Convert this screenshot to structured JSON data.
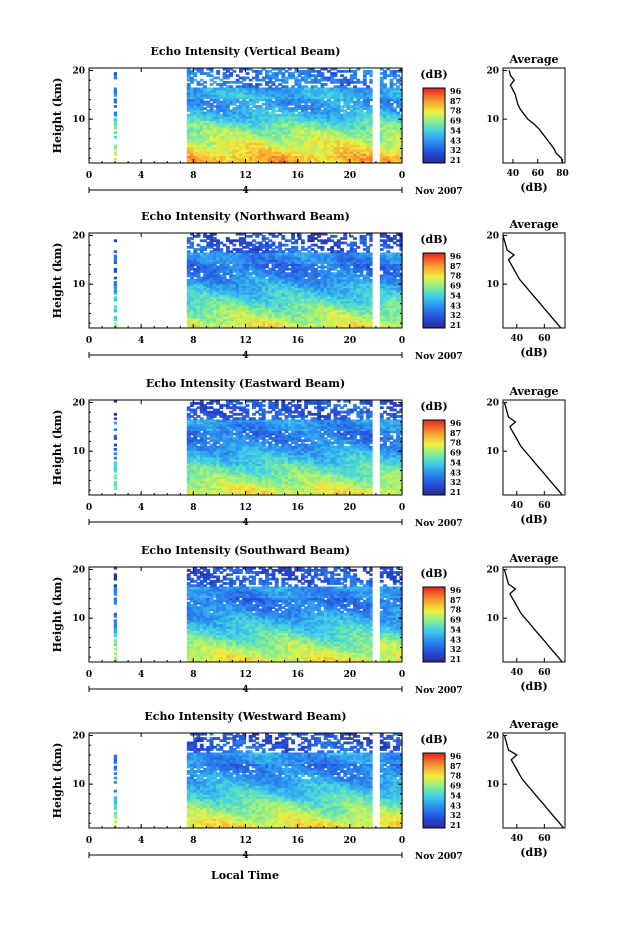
{
  "shared": {
    "xlabel": "Local Time",
    "x_ticks": [
      "0",
      "4",
      "8",
      "12",
      "16",
      "20",
      "0"
    ],
    "date_label": "Nov 2007",
    "day_marker": "4",
    "ylabel": "Height (km)",
    "y_ticks": [
      "20",
      "10"
    ],
    "colorbar_unit": "(dB)",
    "colorbar_ticks": [
      "96",
      "87",
      "78",
      "69",
      "54",
      "43",
      "32",
      "21"
    ],
    "profile_title": "Average",
    "profile_xlabel": "(dB)",
    "colors": {
      "axis": "#000000",
      "profile_line": "#000000"
    }
  },
  "chart_data": [
    {
      "type": "heatmap",
      "title": "Echo Intensity (Vertical Beam)",
      "x_range_hours": [
        0,
        24
      ],
      "y_range_km": [
        1,
        20.5
      ],
      "data_coverage_hours": [
        [
          1.9,
          2.1
        ],
        [
          7.5,
          21.7
        ],
        [
          22.3,
          24
        ]
      ],
      "color_range_db": [
        21,
        96
      ],
      "profile": {
        "title": "Average",
        "xlabel": "(dB)",
        "x_ticks": [
          "40",
          "60",
          "80"
        ],
        "xlim": [
          32,
          82
        ],
        "height_km": [
          1,
          2,
          3,
          4,
          5,
          6,
          7,
          8,
          9,
          10,
          11,
          12,
          13,
          14,
          15,
          16,
          17,
          18,
          19,
          20
        ],
        "db": [
          80,
          79,
          75,
          73,
          70,
          67,
          64,
          61,
          57,
          52,
          49,
          46,
          44,
          43,
          42,
          40,
          38,
          41,
          38,
          37
        ]
      }
    },
    {
      "type": "heatmap",
      "title": "Echo Intensity (Northward Beam)",
      "x_range_hours": [
        0,
        24
      ],
      "y_range_km": [
        1,
        20.5
      ],
      "data_coverage_hours": [
        [
          1.9,
          2.1
        ],
        [
          7.5,
          21.7
        ],
        [
          22.3,
          24
        ]
      ],
      "color_range_db": [
        21,
        96
      ],
      "profile": {
        "title": "Average",
        "xlabel": "(dB)",
        "x_ticks": [
          "40",
          "60"
        ],
        "xlim": [
          30,
          75
        ],
        "height_km": [
          1,
          2,
          3,
          4,
          5,
          6,
          7,
          8,
          9,
          10,
          11,
          12,
          13,
          14,
          15,
          16,
          17,
          18,
          19,
          20
        ],
        "db": [
          72,
          69,
          66,
          63,
          60,
          57,
          54,
          51,
          48,
          45,
          42,
          40,
          38,
          36,
          34,
          38,
          33,
          32,
          31,
          30
        ]
      }
    },
    {
      "type": "heatmap",
      "title": "Echo Intensity (Eastward Beam)",
      "x_range_hours": [
        0,
        24
      ],
      "y_range_km": [
        1,
        20.5
      ],
      "data_coverage_hours": [
        [
          1.9,
          2.1
        ],
        [
          7.5,
          21.7
        ],
        [
          22.3,
          24
        ]
      ],
      "color_range_db": [
        21,
        96
      ],
      "profile": {
        "title": "Average",
        "xlabel": "(dB)",
        "x_ticks": [
          "40",
          "60"
        ],
        "xlim": [
          30,
          75
        ],
        "height_km": [
          1,
          2,
          3,
          4,
          5,
          6,
          7,
          8,
          9,
          10,
          11,
          12,
          13,
          14,
          15,
          16,
          17,
          18,
          19,
          20
        ],
        "db": [
          73,
          70,
          67,
          64,
          61,
          58,
          55,
          52,
          49,
          46,
          43,
          41,
          39,
          37,
          35,
          39,
          34,
          33,
          32,
          31
        ]
      }
    },
    {
      "type": "heatmap",
      "title": "Echo Intensity (Southward Beam)",
      "x_range_hours": [
        0,
        24
      ],
      "y_range_km": [
        1,
        20.5
      ],
      "data_coverage_hours": [
        [
          1.9,
          2.1
        ],
        [
          7.5,
          21.7
        ],
        [
          22.3,
          24
        ]
      ],
      "color_range_db": [
        21,
        96
      ],
      "profile": {
        "title": "Average",
        "xlabel": "(dB)",
        "x_ticks": [
          "40",
          "60"
        ],
        "xlim": [
          30,
          75
        ],
        "height_km": [
          1,
          2,
          3,
          4,
          5,
          6,
          7,
          8,
          9,
          10,
          11,
          12,
          13,
          14,
          15,
          16,
          17,
          18,
          19,
          20
        ],
        "db": [
          73,
          70,
          67,
          64,
          61,
          58,
          55,
          52,
          49,
          46,
          43,
          41,
          39,
          37,
          35,
          39,
          34,
          33,
          32,
          31
        ]
      }
    },
    {
      "type": "heatmap",
      "title": "Echo Intensity (Westward Beam)",
      "x_range_hours": [
        0,
        24
      ],
      "y_range_km": [
        1,
        20.5
      ],
      "data_coverage_hours": [
        [
          1.9,
          2.1
        ],
        [
          7.5,
          21.7
        ],
        [
          22.3,
          24
        ]
      ],
      "color_range_db": [
        21,
        96
      ],
      "profile": {
        "title": "Average",
        "xlabel": "(dB)",
        "x_ticks": [
          "40",
          "60"
        ],
        "xlim": [
          30,
          75
        ],
        "height_km": [
          1,
          2,
          3,
          4,
          5,
          6,
          7,
          8,
          9,
          10,
          11,
          12,
          13,
          14,
          15,
          16,
          17,
          18,
          19,
          20
        ],
        "db": [
          74,
          71,
          68,
          65,
          62,
          59,
          56,
          53,
          50,
          47,
          44,
          42,
          40,
          38,
          36,
          40,
          34,
          33,
          32,
          31
        ]
      }
    }
  ]
}
